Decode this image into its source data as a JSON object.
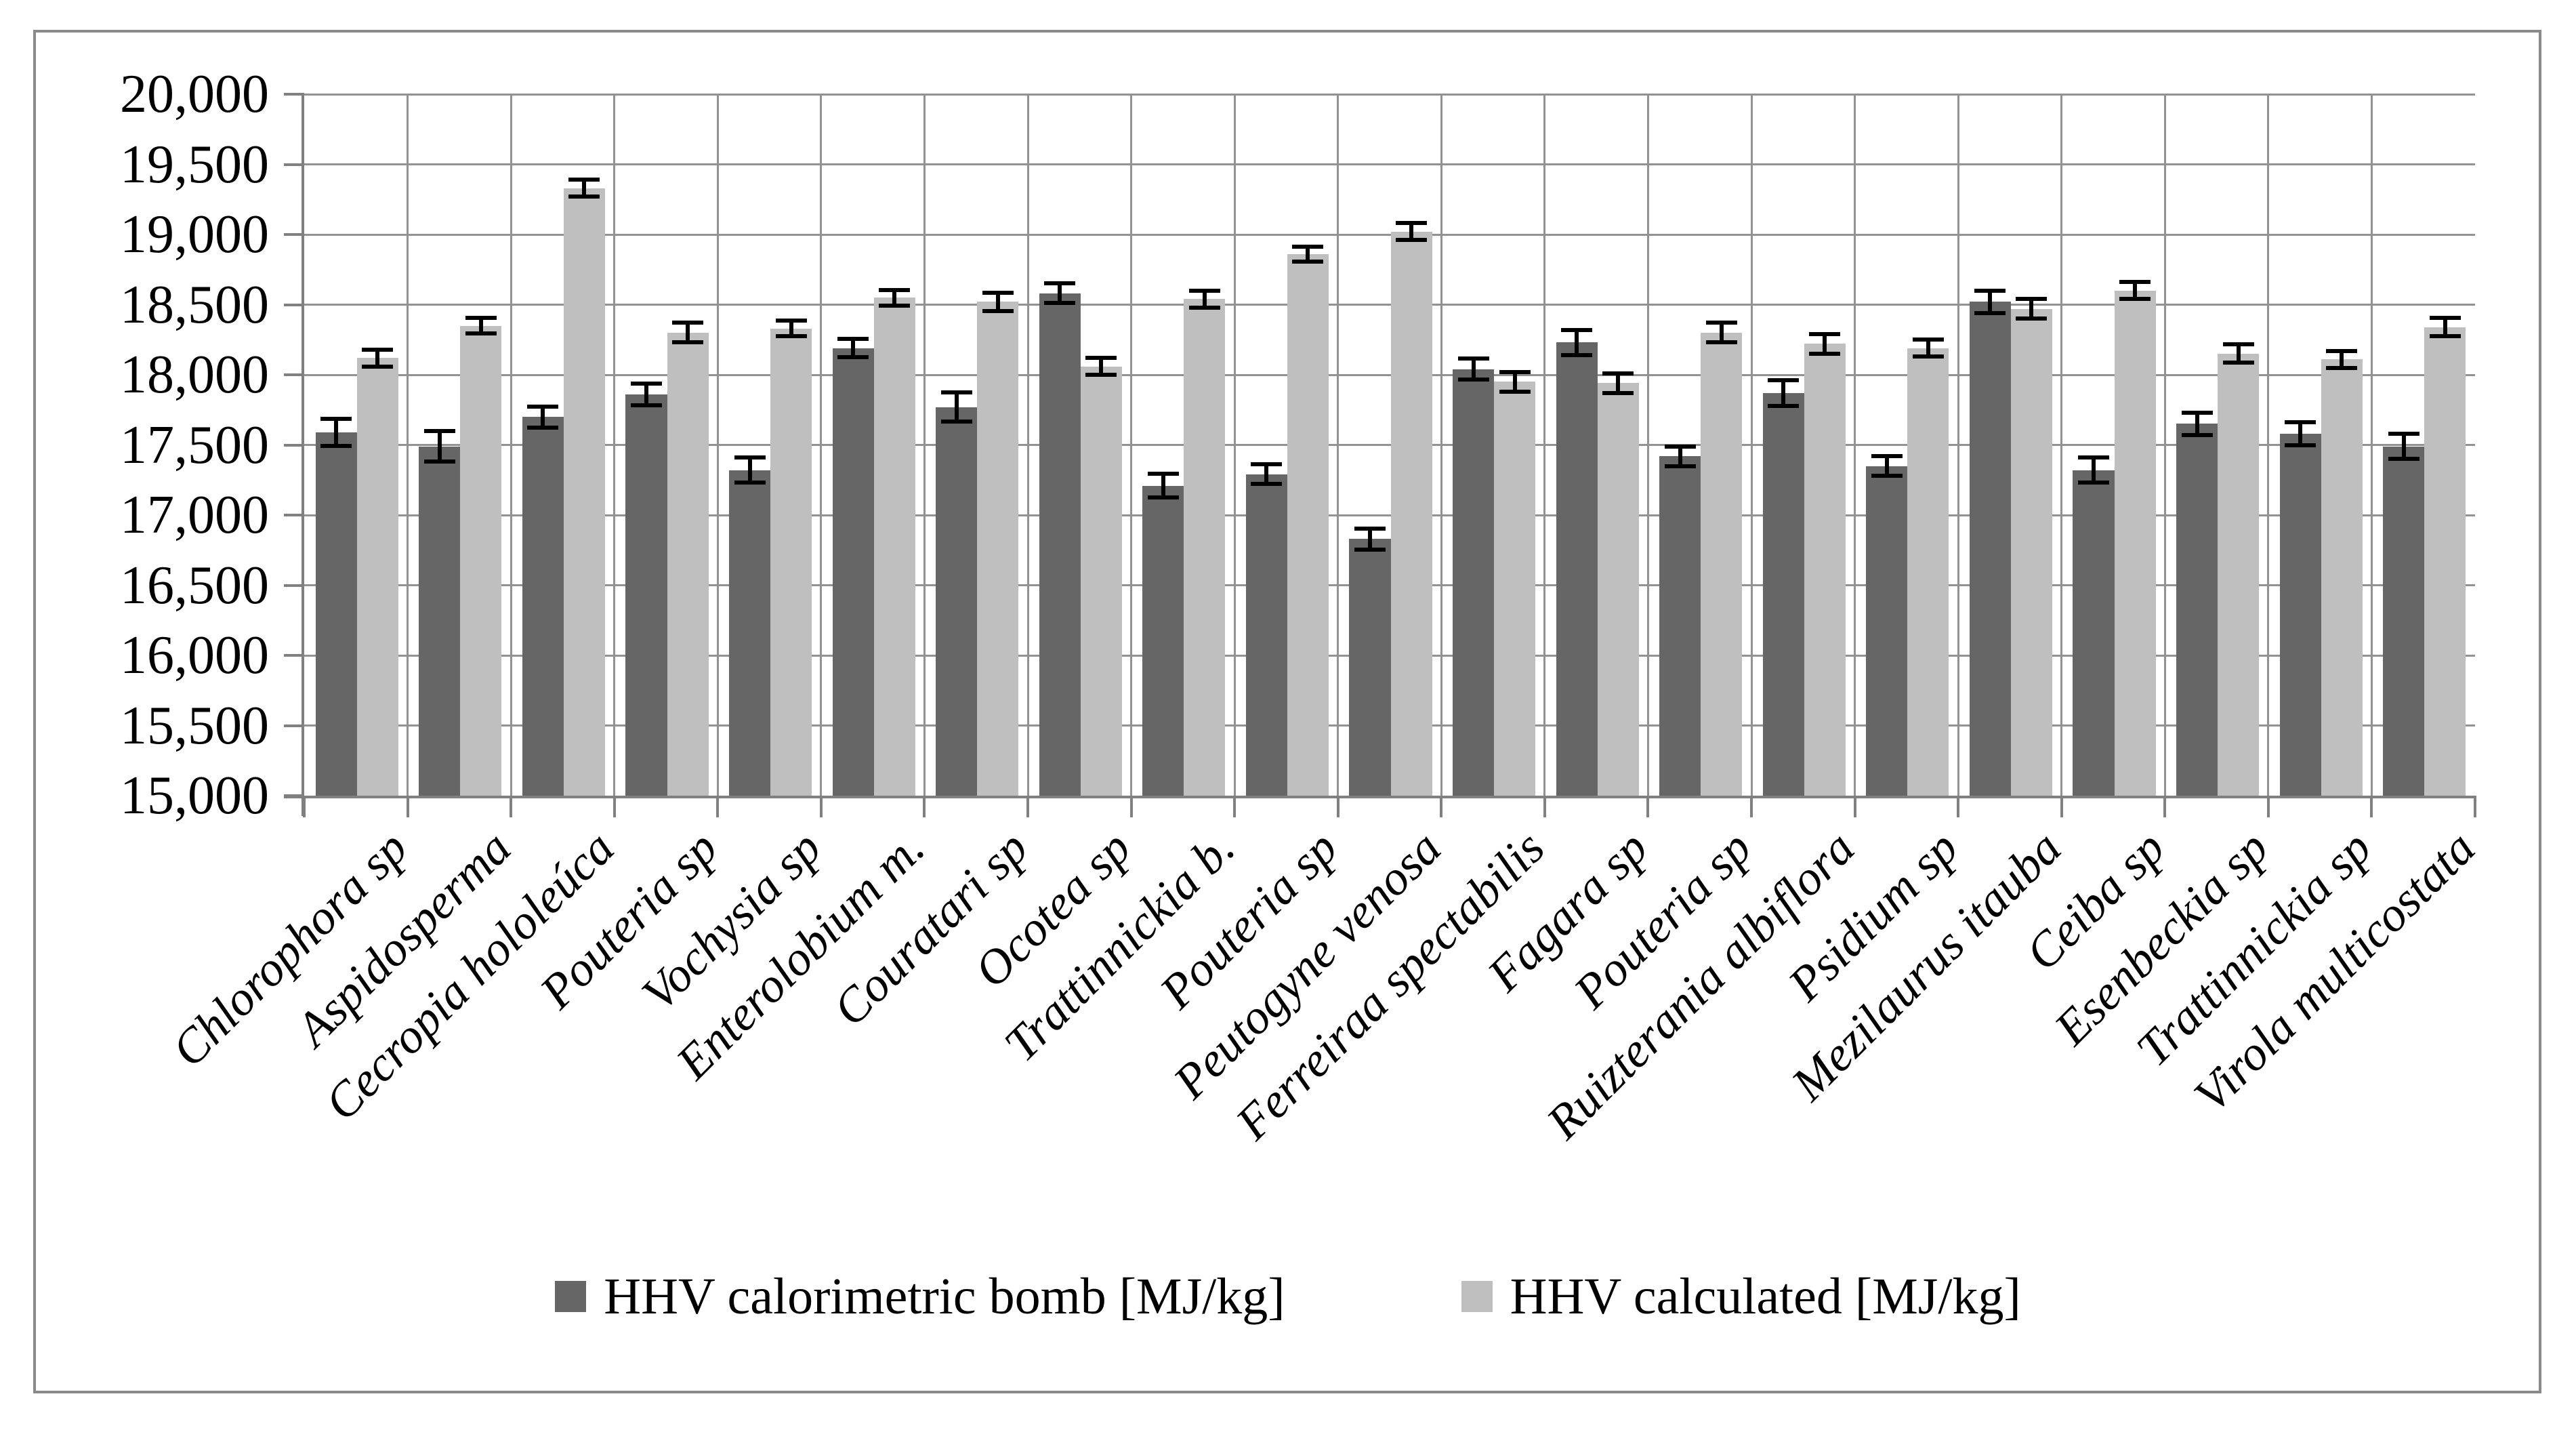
{
  "figure": {
    "background": "#ffffff",
    "border_color": "#8a8a8a"
  },
  "chart_data": {
    "type": "bar",
    "title": "",
    "xlabel": "",
    "ylabel": "",
    "categories": [
      "Chlorophora sp",
      "Aspidosperma",
      "Cecropia hololeúca",
      "Pouteria sp",
      "Vochysia sp",
      "Enterolobium m.",
      "Couratari sp",
      "Ocotea sp",
      "Trattinnickia b.",
      "Pouteria sp",
      "Peutogyne venosa",
      "Ferreiraa spectabilis",
      "Fagara sp",
      "Pouteria sp",
      "Ruizterania albiflora",
      "Psidium sp",
      "Mezilaurus itauba",
      "Ceiba sp",
      "Esenbeckia sp",
      "Trattinnickia sp",
      "Virola multicostata"
    ],
    "series": [
      {
        "name": "HHV calorimetric bomb [MJ/kg]",
        "color": "#666666",
        "values": [
          17590,
          17490,
          17700,
          17860,
          17320,
          18190,
          17770,
          18580,
          17210,
          17290,
          16830,
          18040,
          18230,
          17420,
          17870,
          17350,
          18520,
          17320,
          17650,
          17580,
          17490
        ],
        "errors": [
          95,
          110,
          75,
          75,
          90,
          65,
          105,
          70,
          85,
          70,
          75,
          75,
          90,
          70,
          90,
          70,
          80,
          90,
          80,
          80,
          90
        ]
      },
      {
        "name": "HHV calculated [MJ/kg]",
        "color": "#bfbfbf",
        "values": [
          18120,
          18350,
          19330,
          18300,
          18330,
          18550,
          18520,
          18060,
          18540,
          18860,
          19020,
          17950,
          17940,
          18300,
          18220,
          18190,
          18470,
          18600,
          18150,
          18110,
          18340
        ],
        "errors": [
          60,
          55,
          60,
          70,
          55,
          55,
          65,
          60,
          60,
          55,
          60,
          70,
          70,
          70,
          70,
          60,
          70,
          60,
          65,
          60,
          65
        ]
      }
    ],
    "ylim": [
      15000,
      20000
    ],
    "ytick_step": 500,
    "ytick_labels": [
      "15,000",
      "15,500",
      "16,000",
      "16,500",
      "17,000",
      "17,500",
      "18,000",
      "18,500",
      "19,000",
      "19,500",
      "20,000"
    ],
    "grid": {
      "horizontal": true,
      "vertical": true,
      "color": "#929292"
    },
    "axis_color": "#808080",
    "error_bar_color": "#000000",
    "legend_position": "bottom-center"
  }
}
